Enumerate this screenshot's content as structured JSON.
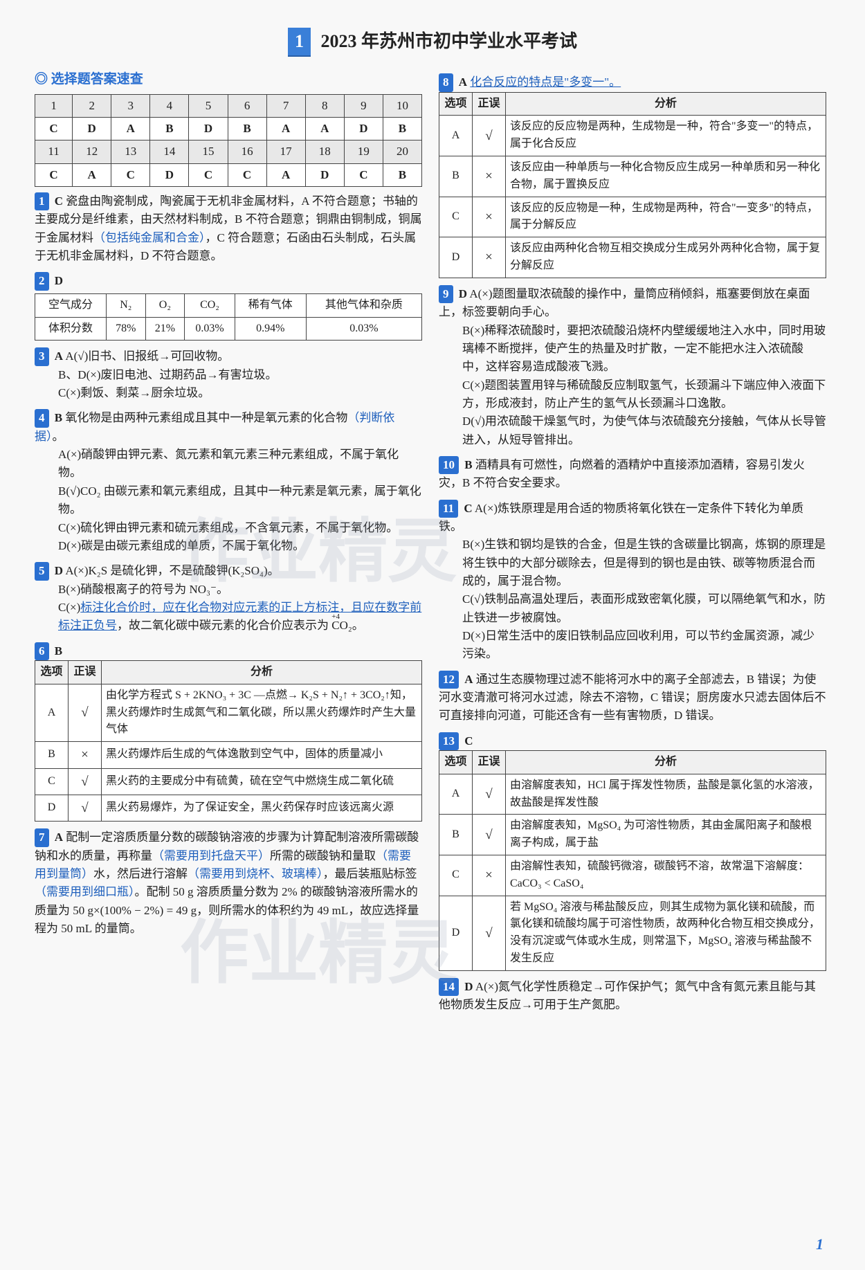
{
  "title_num": "1",
  "title_text": "2023 年苏州市初中学业水平考试",
  "mc_header": "选择题答案速查",
  "answer_grid": {
    "row1_nums": [
      "1",
      "2",
      "3",
      "4",
      "5",
      "6",
      "7",
      "8",
      "9",
      "10"
    ],
    "row1_ans": [
      "C",
      "D",
      "A",
      "B",
      "D",
      "B",
      "A",
      "A",
      "D",
      "B"
    ],
    "row2_nums": [
      "11",
      "12",
      "13",
      "14",
      "15",
      "16",
      "17",
      "18",
      "19",
      "20"
    ],
    "row2_ans": [
      "C",
      "A",
      "C",
      "D",
      "C",
      "C",
      "A",
      "D",
      "C",
      "B"
    ]
  },
  "q1": {
    "badge": "1",
    "ans": "C",
    "text1": "瓷盘由陶瓷制成，陶瓷属于无机非金属材料，A 不符合题意；书轴的主要成分是纤维素，由天然材料制成，B 不符合题意；铜鼎由铜制成，铜属于金属材料",
    "annot1": "（包括纯金属和合金）",
    "text2": "，C 符合题意；石函由石头制成，石头属于无机非金属材料，D 不符合题意。"
  },
  "q2": {
    "badge": "2",
    "ans": "D",
    "headers": [
      "空气成分",
      "N₂",
      "O₂",
      "CO₂",
      "稀有气体",
      "其他气体和杂质"
    ],
    "values": [
      "体积分数",
      "78%",
      "21%",
      "0.03%",
      "0.94%",
      "0.03%"
    ]
  },
  "q3": {
    "badge": "3",
    "ans": "A",
    "a": "A(√)旧书、旧报纸→可回收物。",
    "bd": "B、D(×)废旧电池、过期药品→有害垃圾。",
    "c": "C(×)剩饭、剩菜→厨余垃圾。"
  },
  "q4": {
    "badge": "4",
    "ans": "B",
    "lead": "氧化物是由两种元素组成且其中一种是氧元素的化合物",
    "annot": "（判断依据）",
    "period": "。",
    "a": "A(×)硝酸钾由钾元素、氮元素和氧元素三种元素组成，不属于氧化物。",
    "b": "B(√)CO₂ 由碳元素和氧元素组成，且其中一种元素是氧元素，属于氧化物。",
    "c": "C(×)硫化钾由钾元素和硫元素组成，不含氧元素，不属于氧化物。",
    "d": "D(×)碳是由碳元素组成的单质，不属于氧化物。"
  },
  "q5": {
    "badge": "5",
    "ans": "D",
    "a": "A(×)K₂S 是硫化钾，不是硫酸钾(K₂SO₄)。",
    "b": "B(×)硝酸根离子的符号为 NO₃⁻。",
    "c1": "C(×)",
    "c_u": "标注化合价时，应在化合物对应元素的正上方标注，且应在数字前标注正负号",
    "c2": "，故二氧化碳中碳元素的化合价应表示为 ",
    "c3": "。"
  },
  "q6": {
    "badge": "6",
    "ans": "B",
    "headers": [
      "选项",
      "正误",
      "分析"
    ],
    "rows": [
      {
        "opt": "A",
        "mark": "√",
        "text": "由化学方程式 S + 2KNO₃ + 3C —点燃→ K₂S + N₂↑ + 3CO₂↑知，黑火药爆炸时生成氮气和二氧化碳，所以黑火药爆炸时产生大量气体"
      },
      {
        "opt": "B",
        "mark": "×",
        "text": "黑火药爆炸后生成的气体逸散到空气中，固体的质量减小"
      },
      {
        "opt": "C",
        "mark": "√",
        "text": "黑火药的主要成分中有硫黄，硫在空气中燃烧生成二氧化硫"
      },
      {
        "opt": "D",
        "mark": "√",
        "text": "黑火药易爆炸，为了保证安全，黑火药保存时应该远离火源"
      }
    ]
  },
  "q7": {
    "badge": "7",
    "ans": "A",
    "t1": "配制一定溶质质量分数的碳酸钠溶液的步骤为计算配制溶液所需碳酸钠和水的质量，再称量",
    "a1": "（需要用到托盘天平）",
    "t2": "所需的碳酸钠和量取",
    "a2": "（需要用到量筒）",
    "t3": "水，然后进行溶解",
    "a3": "（需要用到烧杯、玻璃棒）",
    "t4": "，最后装瓶贴标签",
    "a4": "（需要用到细口瓶）",
    "t5": "。配制 50 g 溶质质量分数为 2% 的碳酸钠溶液所需水的质量为 50 g×(100% − 2%) = 49 g，则所需水的体积约为 49 mL，故应选择量程为 50 mL 的量筒。"
  },
  "q8": {
    "badge": "8",
    "ans": "A",
    "lead_u": "化合反应的特点是\"多变一\"。",
    "headers": [
      "选项",
      "正误",
      "分析"
    ],
    "rows": [
      {
        "opt": "A",
        "mark": "√",
        "text": "该反应的反应物是两种，生成物是一种，符合\"多变一\"的特点，属于化合反应"
      },
      {
        "opt": "B",
        "mark": "×",
        "text": "该反应由一种单质与一种化合物反应生成另一种单质和另一种化合物，属于置换反应"
      },
      {
        "opt": "C",
        "mark": "×",
        "text": "该反应的反应物是一种，生成物是两种，符合\"一变多\"的特点，属于分解反应"
      },
      {
        "opt": "D",
        "mark": "×",
        "text": "该反应由两种化合物互相交换成分生成另外两种化合物，属于复分解反应"
      }
    ]
  },
  "q9": {
    "badge": "9",
    "ans": "D",
    "a": "A(×)题图量取浓硫酸的操作中，量筒应稍倾斜，瓶塞要倒放在桌面上，标签要朝向手心。",
    "b": "B(×)稀释浓硫酸时，要把浓硫酸沿烧杯内壁缓缓地注入水中，同时用玻璃棒不断搅拌，使产生的热量及时扩散，一定不能把水注入浓硫酸中，这样容易造成酸液飞溅。",
    "c": "C(×)题图装置用锌与稀硫酸反应制取氢气，长颈漏斗下端应伸入液面下方，形成液封，防止产生的氢气从长颈漏斗口逸散。",
    "d": "D(√)用浓硫酸干燥氢气时，为使气体与浓硫酸充分接触，气体从长导管进入，从短导管排出。"
  },
  "q10": {
    "badge": "10",
    "ans": "B",
    "text": "酒精具有可燃性，向燃着的酒精炉中直接添加酒精，容易引发火灾，B 不符合安全要求。"
  },
  "q11": {
    "badge": "11",
    "ans": "C",
    "a": "A(×)炼铁原理是用合适的物质将氧化铁在一定条件下转化为单质铁。",
    "b": "B(×)生铁和钢均是铁的合金，但是生铁的含碳量比钢高，炼钢的原理是将生铁中的大部分碳除去，但是得到的钢也是由铁、碳等物质混合而成的，属于混合物。",
    "c": "C(√)铁制品高温处理后，表面形成致密氧化膜，可以隔绝氧气和水，防止铁进一步被腐蚀。",
    "d": "D(×)日常生活中的废旧铁制品应回收利用，可以节约金属资源，减少污染。"
  },
  "q12": {
    "badge": "12",
    "ans": "A",
    "text": "通过生态膜物理过滤不能将河水中的离子全部滤去，B 错误；为使河水变清澈可将河水过滤，除去不溶物，C 错误；厨房废水只滤去固体后不可直接排向河道，可能还含有一些有害物质，D 错误。"
  },
  "q13": {
    "badge": "13",
    "ans": "C",
    "headers": [
      "选项",
      "正误",
      "分析"
    ],
    "rows": [
      {
        "opt": "A",
        "mark": "√",
        "text": "由溶解度表知，HCl 属于挥发性物质，盐酸是氯化氢的水溶液，故盐酸是挥发性酸"
      },
      {
        "opt": "B",
        "mark": "√",
        "text": "由溶解度表知，MgSO₄ 为可溶性物质，其由金属阳离子和酸根离子构成，属于盐"
      },
      {
        "opt": "C",
        "mark": "×",
        "text": "由溶解性表知，硫酸钙微溶，碳酸钙不溶，故常温下溶解度：CaCO₃ < CaSO₄"
      },
      {
        "opt": "D",
        "mark": "√",
        "text": "若 MgSO₄ 溶液与稀盐酸反应，则其生成物为氯化镁和硫酸，而氯化镁和硫酸均属于可溶性物质，故两种化合物互相交换成分，没有沉淀或气体或水生成，则常温下，MgSO₄ 溶液与稀盐酸不发生反应"
      }
    ]
  },
  "q14": {
    "badge": "14",
    "ans": "D",
    "text": "A(×)氮气化学性质稳定→可作保护气；氮气中含有氮元素且能与其他物质发生反应→可用于生产氮肥。"
  },
  "page_num": "1",
  "watermark": "作业精灵"
}
